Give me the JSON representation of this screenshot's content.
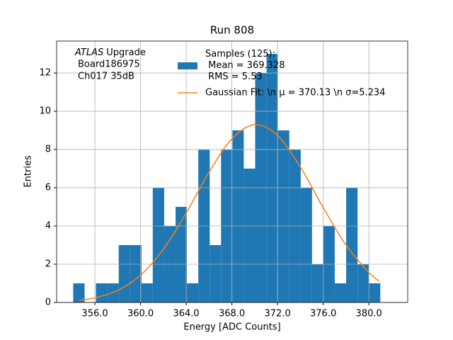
{
  "chart_data": {
    "type": "histogram",
    "title": "Run 808",
    "xlabel": "Energy [ADC Counts]",
    "ylabel": "Entries",
    "annotation": {
      "italic": "ATLAS",
      "lines": [
        "Upgrade",
        "Board186975",
        "Ch017 35dB"
      ]
    },
    "bins": [
      354.1,
      355.1,
      356.09,
      357.09,
      358.09,
      359.08,
      360.08,
      361.07,
      362.07,
      363.07,
      364.06,
      365.06,
      366.06,
      367.05,
      368.05,
      369.04,
      370.04,
      371.04,
      372.03,
      373.03,
      374.03,
      375.02,
      376.02,
      377.01,
      378.01,
      379.01,
      380.0,
      381.0
    ],
    "counts": [
      1,
      0,
      1,
      1,
      3,
      3,
      1,
      6,
      4,
      5,
      1,
      8,
      3,
      8,
      9,
      7,
      12,
      13,
      9,
      8,
      6,
      2,
      4,
      1,
      6,
      2,
      1
    ],
    "hist_name": "Samples (125):\n Mean = 369.328\n RMS = 5.53",
    "hist_color": "#1f77b4",
    "fit": {
      "name": "Gaussian Fit: \\n μ = 370.13 \\n σ=5.234",
      "color": "#ff7f0e",
      "x": [
        354.6,
        356,
        358,
        360,
        362,
        364,
        366,
        368,
        370,
        372,
        374,
        376,
        378,
        380,
        380.9
      ],
      "values": [
        0.11,
        0.24,
        0.63,
        1.43,
        2.78,
        4.68,
        6.81,
        8.56,
        9.3,
        8.73,
        7.08,
        4.96,
        3.0,
        1.57,
        1.12
      ]
    },
    "xlim": [
      352.65,
      383.4
    ],
    "ylim": [
      0,
      13.67
    ],
    "xticks": [
      {
        "value": 356,
        "label": "356.0"
      },
      {
        "value": 360,
        "label": "360.0"
      },
      {
        "value": 364,
        "label": "364.0"
      },
      {
        "value": 368,
        "label": "368.0"
      },
      {
        "value": 372,
        "label": "372.0"
      },
      {
        "value": 376,
        "label": "376.0"
      },
      {
        "value": 380,
        "label": "380.0"
      }
    ],
    "yticks": [
      0,
      2,
      4,
      6,
      8,
      10,
      12
    ],
    "grid": true
  }
}
